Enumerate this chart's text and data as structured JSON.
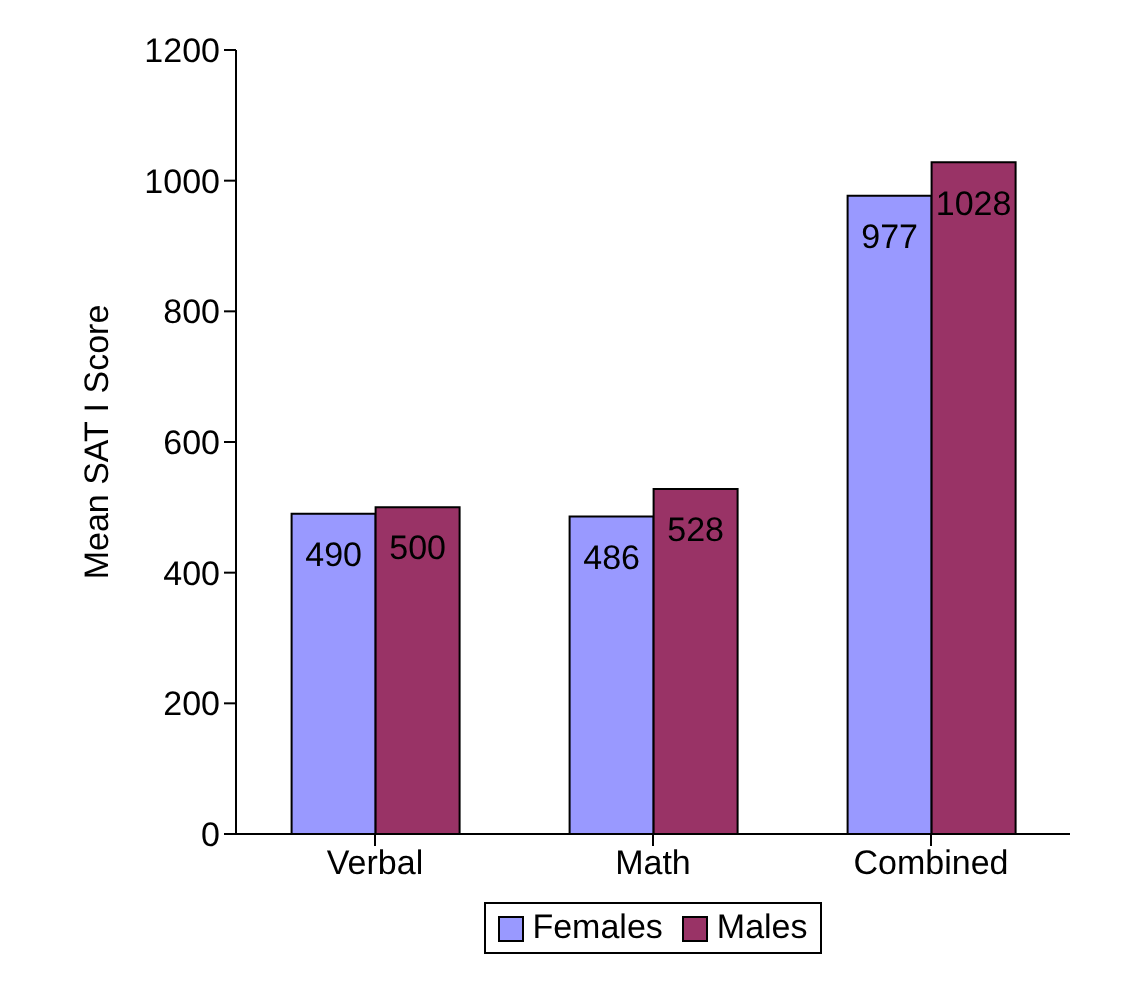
{
  "chart_data": {
    "type": "bar",
    "ylabel": "Mean SAT I Score",
    "categories": [
      "Verbal",
      "Math",
      "Combined"
    ],
    "series": [
      {
        "name": "Females",
        "color": "#9999ff",
        "values": [
          490,
          486,
          977
        ]
      },
      {
        "name": "Males",
        "color": "#993366",
        "values": [
          500,
          528,
          1028
        ]
      }
    ],
    "ylim": [
      0,
      1200
    ],
    "yticks": [
      0,
      200,
      400,
      600,
      800,
      1000,
      1200
    ],
    "legend": "bottom",
    "data_labels": true
  }
}
